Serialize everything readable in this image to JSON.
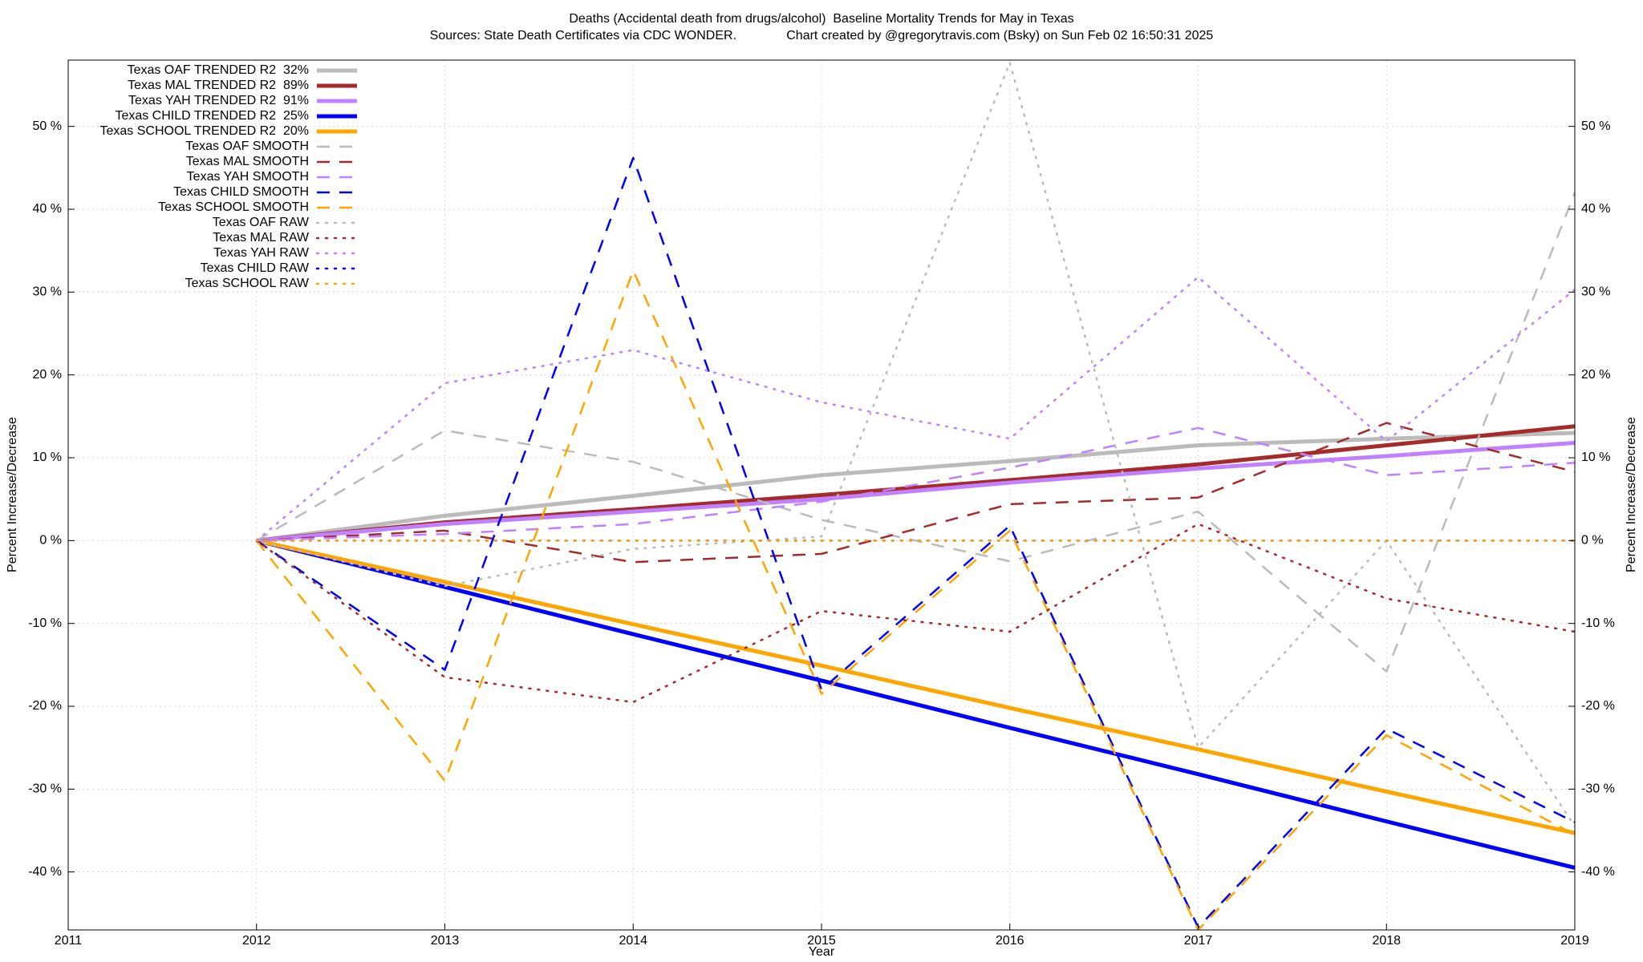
{
  "chart_data": {
    "type": "line",
    "title": "Deaths (Accidental death from drugs/alcohol)  Baseline Mortality Trends for May in Texas",
    "subtitle": "Sources: State Death Certificates via CDC WONDER.              Chart created by @gregorytravis.com (Bsky) on Sun Feb 02 16:50:31 2025",
    "x_label": "Year",
    "y_label": "Percent Increase/Decrease",
    "y2_label": "Percent Increase/Decrease",
    "x": [
      2012,
      2013,
      2014,
      2015,
      2016,
      2017,
      2018,
      2019
    ],
    "xlim": [
      2011,
      2019
    ],
    "xticks": [
      2011,
      2012,
      2013,
      2014,
      2015,
      2016,
      2017,
      2018,
      2019
    ],
    "ylim": [
      -47,
      58
    ],
    "yticks": [
      {
        "value": -40,
        "label": "-40 %"
      },
      {
        "value": -30,
        "label": "-30 %"
      },
      {
        "value": -20,
        "label": "-20 %"
      },
      {
        "value": -10,
        "label": "-10 %"
      },
      {
        "value": 0,
        "label": "0 %"
      },
      {
        "value": 10,
        "label": "10 %"
      },
      {
        "value": 20,
        "label": "20 %"
      },
      {
        "value": 30,
        "label": "30 %"
      },
      {
        "value": 40,
        "label": "40 %"
      },
      {
        "value": 50,
        "label": "50 %"
      }
    ],
    "y2lim": [
      -47,
      58
    ],
    "y2ticks": [
      {
        "value": -40,
        "label": "-40 %"
      },
      {
        "value": -30,
        "label": "-30 %"
      },
      {
        "value": -20,
        "label": "-20 %"
      },
      {
        "value": -10,
        "label": "-10 %"
      },
      {
        "value": 0,
        "label": "0 %"
      },
      {
        "value": 10,
        "label": "10 %"
      },
      {
        "value": 20,
        "label": "20 %"
      },
      {
        "value": 30,
        "label": "30 %"
      },
      {
        "value": 40,
        "label": "40 %"
      },
      {
        "value": 50,
        "label": "50 %"
      }
    ],
    "grid": true,
    "legend": "upper-left",
    "series": [
      {
        "name": "Texas OAF TRENDED R2  32%",
        "color": "#bbbbbb",
        "style": "solid",
        "values": [
          0,
          3.0,
          5.4,
          7.9,
          9.6,
          11.5,
          12.3,
          13.0
        ]
      },
      {
        "name": "Texas MAL TRENDED R2  89%",
        "color": "#a52a2a",
        "style": "solid",
        "values": [
          0,
          2.2,
          3.8,
          5.5,
          7.3,
          9.2,
          11.5,
          13.8
        ]
      },
      {
        "name": "Texas YAH TRENDED R2  91%",
        "color": "#c080ff",
        "style": "solid",
        "values": [
          0,
          2.0,
          3.5,
          5.0,
          7.0,
          8.7,
          10.2,
          11.8
        ]
      },
      {
        "name": "Texas CHILD TRENDED R2  25%",
        "color": "#0000ff",
        "style": "solid",
        "values": [
          0,
          -5.6,
          -11.3,
          -16.9,
          -22.6,
          -28.2,
          -33.9,
          -39.5
        ]
      },
      {
        "name": "Texas SCHOOL TRENDED R2  20%",
        "color": "#ffa500",
        "style": "solid",
        "values": [
          0,
          -5.0,
          -10.1,
          -15.1,
          -20.2,
          -25.2,
          -30.3,
          -35.3
        ]
      },
      {
        "name": "Texas OAF SMOOTH",
        "color": "#bbbbbb",
        "style": "dashed",
        "values": [
          0,
          13.3,
          9.5,
          2.5,
          -2.5,
          3.5,
          -15.8,
          42
        ]
      },
      {
        "name": "Texas MAL SMOOTH",
        "color": "#a52a2a",
        "style": "dashed",
        "values": [
          0,
          1.2,
          -2.6,
          -1.6,
          4.4,
          5.2,
          14.2,
          8.3
        ]
      },
      {
        "name": "Texas YAH SMOOTH",
        "color": "#c080ff",
        "style": "dashed",
        "values": [
          0,
          0.8,
          2.0,
          4.7,
          8.8,
          13.6,
          7.9,
          9.4
        ]
      },
      {
        "name": "Texas CHILD SMOOTH",
        "color": "#0000ff",
        "style": "dashed",
        "values": [
          0,
          -15.6,
          46.2,
          -18,
          1.8,
          -46.7,
          -22.7,
          -34
        ]
      },
      {
        "name": "Texas SCHOOL SMOOTH",
        "color": "#ffa500",
        "style": "dashed",
        "values": [
          0,
          -29,
          32.6,
          -18.5,
          1.2,
          -47,
          -23.5,
          -35.5
        ]
      },
      {
        "name": "Texas OAF RAW",
        "color": "#bbbbbb",
        "style": "dotted",
        "values": [
          0,
          -5.5,
          -1,
          0.5,
          57.7,
          -25,
          0,
          -34.5
        ]
      },
      {
        "name": "Texas MAL RAW",
        "color": "#a52a2a",
        "style": "dotted",
        "values": [
          0,
          -16.5,
          -19.5,
          -8.5,
          -11,
          2,
          -7,
          -11
        ]
      },
      {
        "name": "Texas YAH RAW",
        "color": "#c080ff",
        "style": "dotted",
        "values": [
          0,
          19,
          23,
          16.7,
          12.3,
          31.8,
          12,
          30.3
        ]
      },
      {
        "name": "Texas CHILD RAW",
        "color": "#0000ff",
        "style": "dotted",
        "values": [
          0,
          0,
          0,
          0,
          0,
          0,
          0,
          0
        ]
      },
      {
        "name": "Texas SCHOOL RAW",
        "color": "#ffa500",
        "style": "dotted",
        "values": [
          0,
          0,
          0,
          0,
          0,
          0,
          0,
          0
        ]
      }
    ]
  }
}
